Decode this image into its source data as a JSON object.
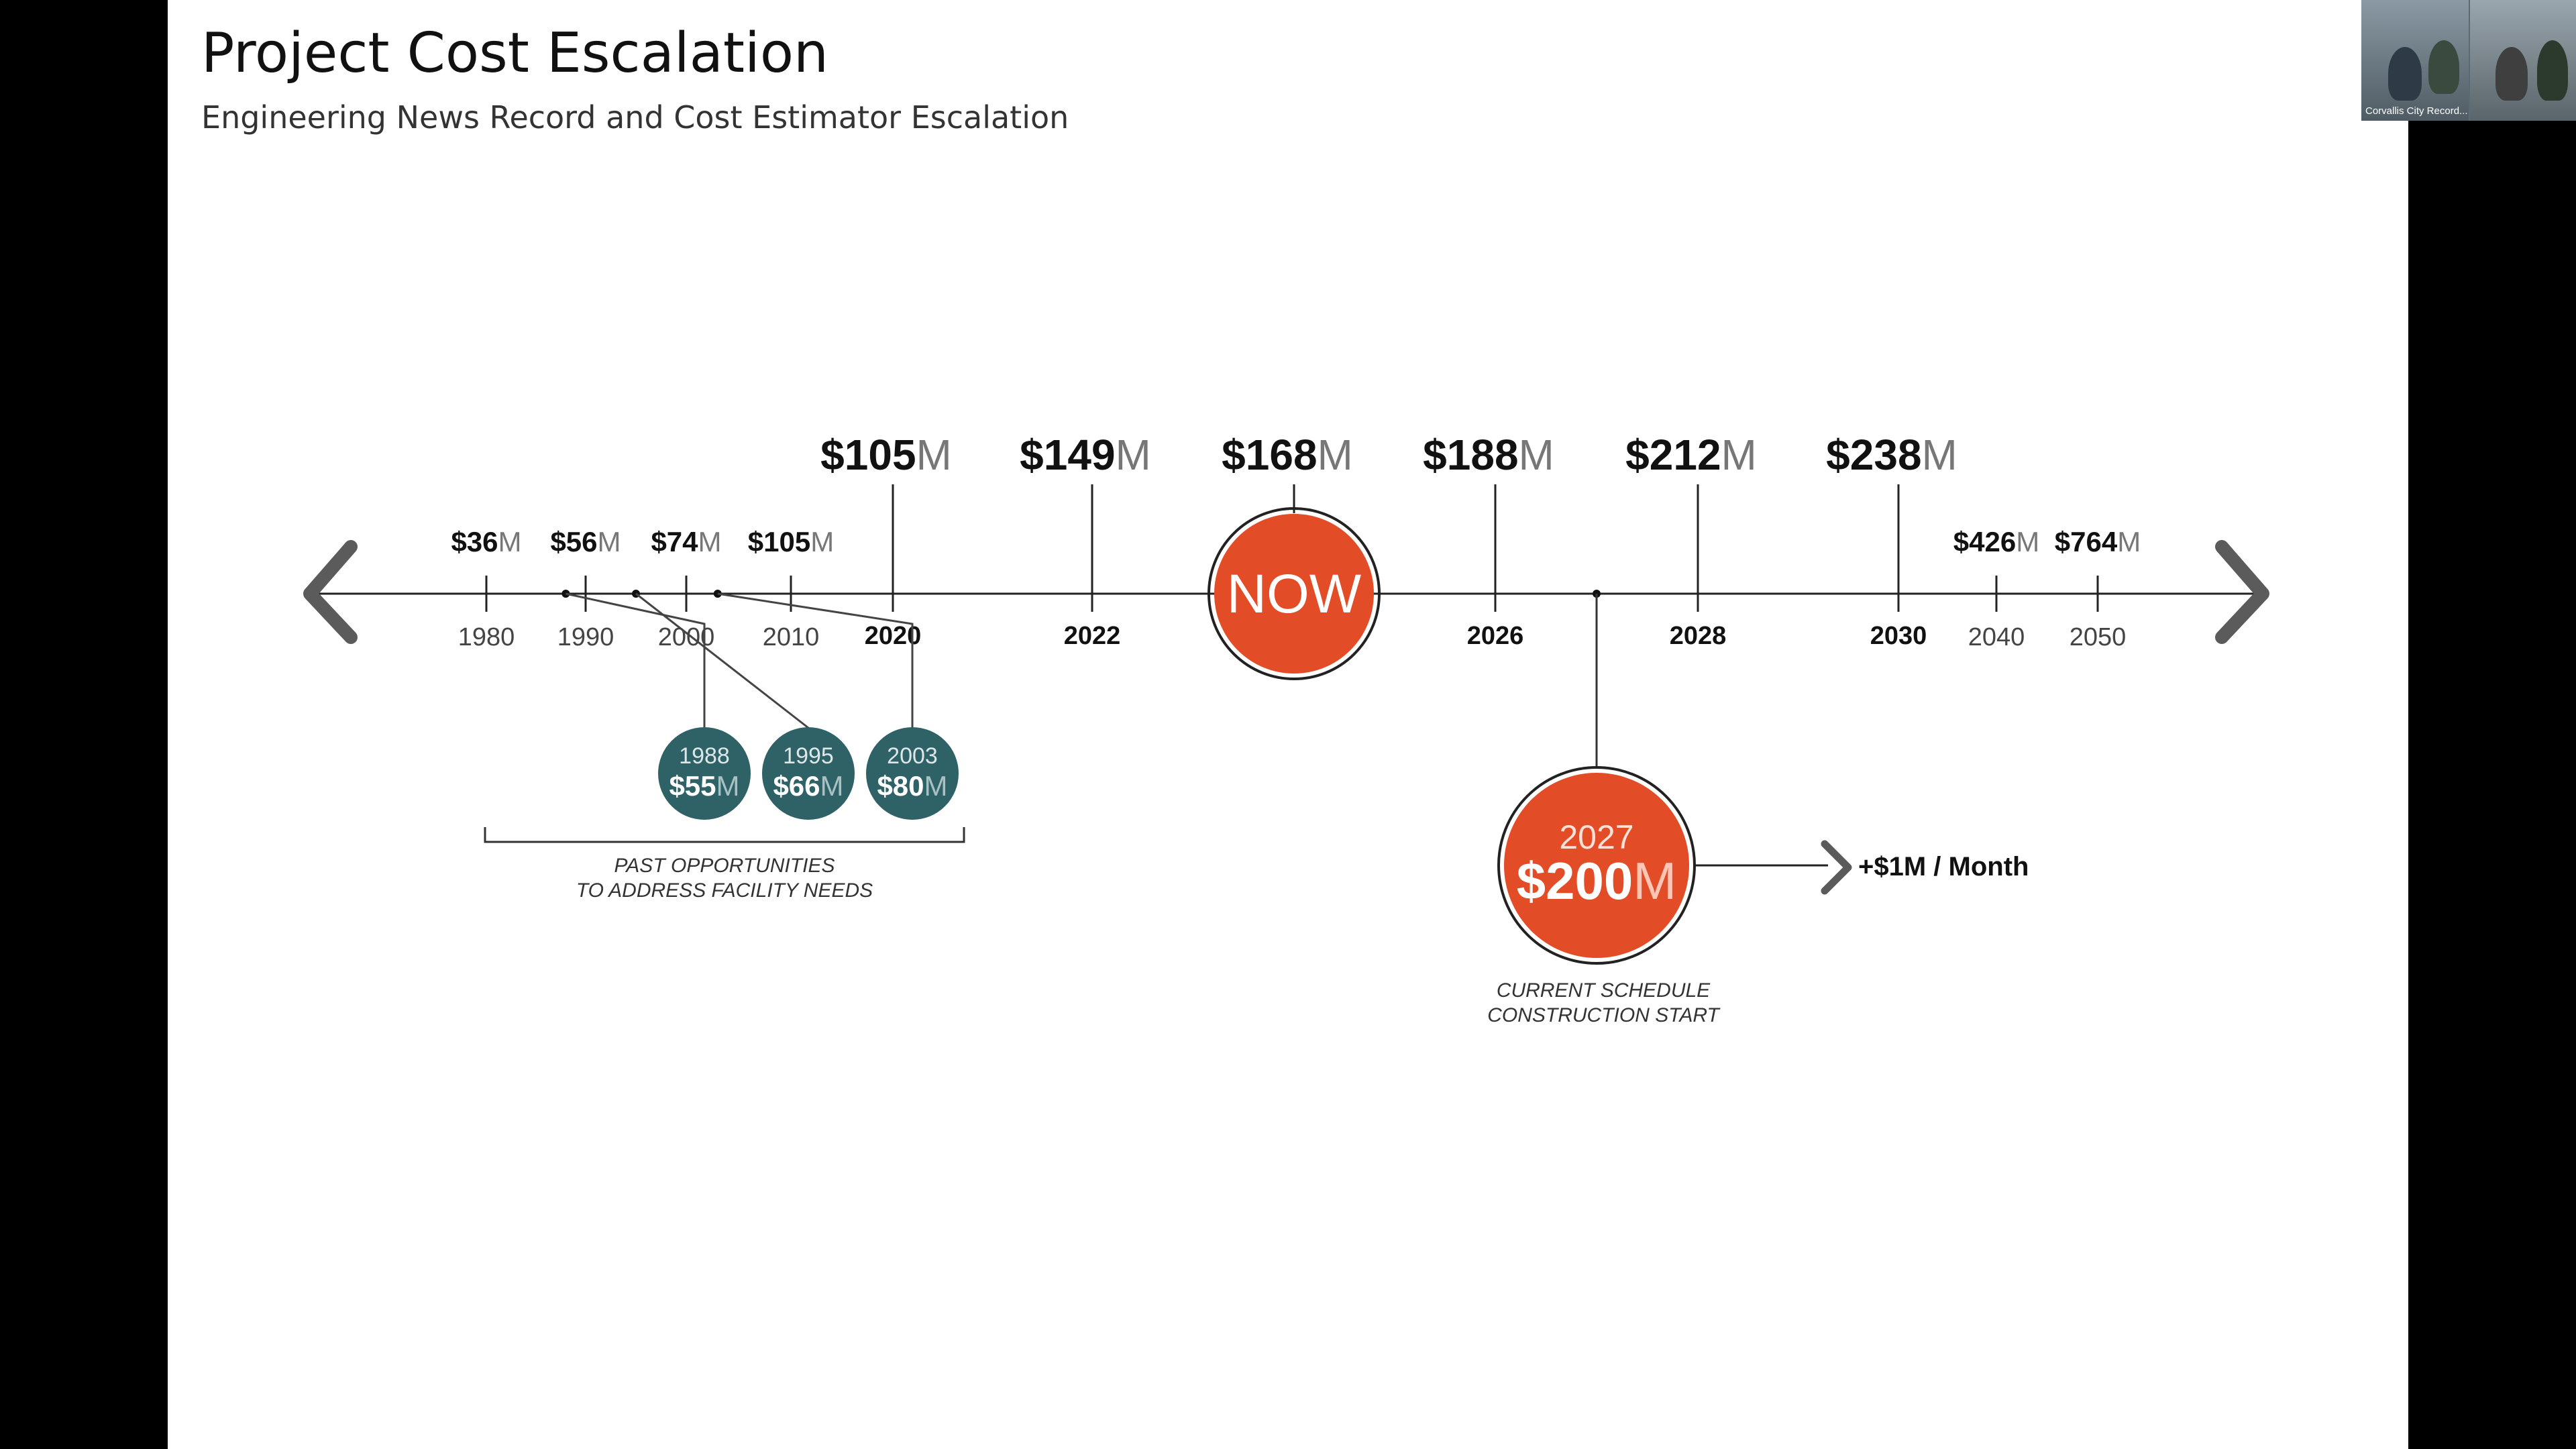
{
  "slide": {
    "title": "Project Cost Escalation",
    "subtitle": "Engineering News Record and Cost Estimator Escalation"
  },
  "timeline": {
    "unit": "M",
    "minor_milestones": [
      {
        "year": "1980",
        "cost": "$36"
      },
      {
        "year": "1990",
        "cost": "$56"
      },
      {
        "year": "2000",
        "cost": "$74"
      },
      {
        "year": "2010",
        "cost": "$105"
      },
      {
        "year": "2040",
        "cost": "$426"
      },
      {
        "year": "2050",
        "cost": "$764"
      }
    ],
    "major_milestones": [
      {
        "year": "2020",
        "cost": "$105"
      },
      {
        "year": "2022",
        "cost": "$149"
      },
      {
        "year": "2026",
        "cost": "$188"
      },
      {
        "year": "2028",
        "cost": "$212"
      },
      {
        "year": "2030",
        "cost": "$238"
      }
    ],
    "now": {
      "label": "NOW",
      "cost": "$168"
    },
    "past_opportunities": [
      {
        "year": "1988",
        "cost": "$55"
      },
      {
        "year": "1995",
        "cost": "$66"
      },
      {
        "year": "2003",
        "cost": "$80"
      }
    ],
    "past_caption": [
      "PAST OPPORTUNITIES",
      "TO ADDRESS FACILITY NEEDS"
    ],
    "construction": {
      "year": "2027",
      "cost": "$200",
      "caption": [
        "CURRENT SCHEDULE",
        "CONSTRUCTION START"
      ],
      "rate": "+$1M / Month"
    }
  },
  "video": {
    "caption": "Corvallis City Record..."
  },
  "colors": {
    "accent": "#e24d28",
    "teal": "#2f6266",
    "line": "#222222",
    "arrow": "#5b5b5b"
  }
}
